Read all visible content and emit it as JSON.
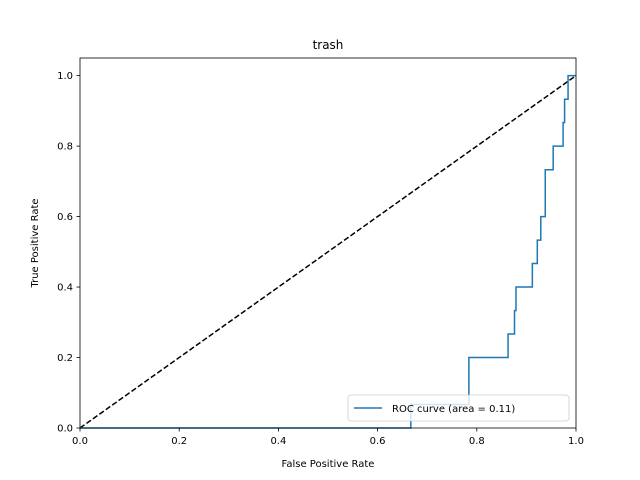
{
  "chart_data": {
    "type": "line",
    "title": "trash",
    "xlabel": "False Positive Rate",
    "ylabel": "True Positive Rate",
    "xlim": [
      0,
      1
    ],
    "ylim": [
      0,
      1.05
    ],
    "xticks": [
      "0.0",
      "0.2",
      "0.4",
      "0.6",
      "0.8",
      "1.0"
    ],
    "yticks": [
      "0.0",
      "0.2",
      "0.4",
      "0.6",
      "0.8",
      "1.0"
    ],
    "legend_position": "lower-right",
    "grid": false,
    "series": [
      {
        "name": "ROC curve (area = 0.11)",
        "color": "#1f77b4",
        "style": "solid",
        "x": [
          0.0,
          0.667,
          0.667,
          0.784,
          0.784,
          0.863,
          0.863,
          0.876,
          0.876,
          0.879,
          0.879,
          0.912,
          0.912,
          0.922,
          0.922,
          0.929,
          0.929,
          0.938,
          0.938,
          0.954,
          0.954,
          0.974,
          0.974,
          0.977,
          0.977,
          0.984,
          0.984,
          1.0
        ],
        "y": [
          0.0,
          0.0,
          0.0667,
          0.0667,
          0.2,
          0.2,
          0.2667,
          0.2667,
          0.333,
          0.333,
          0.4,
          0.4,
          0.4667,
          0.4667,
          0.533,
          0.533,
          0.6,
          0.6,
          0.733,
          0.733,
          0.8,
          0.8,
          0.867,
          0.867,
          0.933,
          0.933,
          1.0,
          1.0
        ]
      },
      {
        "name": "",
        "color": "#000000",
        "style": "dashed",
        "x": [
          0,
          1
        ],
        "y": [
          0,
          1
        ]
      }
    ]
  }
}
